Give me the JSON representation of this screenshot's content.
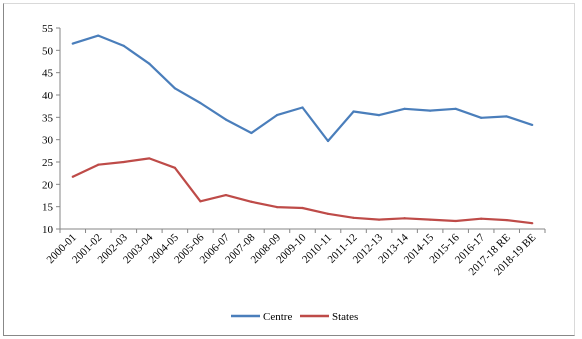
{
  "chart_data": {
    "type": "line",
    "title": "",
    "xlabel": "",
    "ylabel": "",
    "categories": [
      "2000-01",
      "2001-02",
      "2002-03",
      "2003-04",
      "2004-05",
      "2005-06",
      "2006-07",
      "2007-08",
      "2008-09",
      "2009-10",
      "2010-11",
      "2011-12",
      "2012-13",
      "2013-14",
      "2014-15",
      "2015-16",
      "2016-17",
      "2017-18 RE",
      "2018-19 BE"
    ],
    "ylim": [
      10,
      55
    ],
    "yticks": [
      10,
      15,
      20,
      25,
      30,
      35,
      40,
      45,
      50,
      55
    ],
    "grid": false,
    "legend_position": "bottom",
    "series": [
      {
        "name": "Centre",
        "color": "#4a7ebb",
        "values": [
          51.5,
          53.3,
          51.0,
          47.0,
          41.5,
          38.2,
          34.5,
          31.5,
          35.5,
          37.2,
          29.7,
          36.3,
          35.5,
          36.9,
          36.5,
          36.9,
          34.9,
          35.2,
          33.3
        ]
      },
      {
        "name": "States",
        "color": "#be4b48",
        "values": [
          21.7,
          24.4,
          25.0,
          25.8,
          23.7,
          16.2,
          17.6,
          16.1,
          14.9,
          14.7,
          13.4,
          12.5,
          12.1,
          12.4,
          12.1,
          11.8,
          12.3,
          12.0,
          11.3
        ]
      }
    ]
  }
}
